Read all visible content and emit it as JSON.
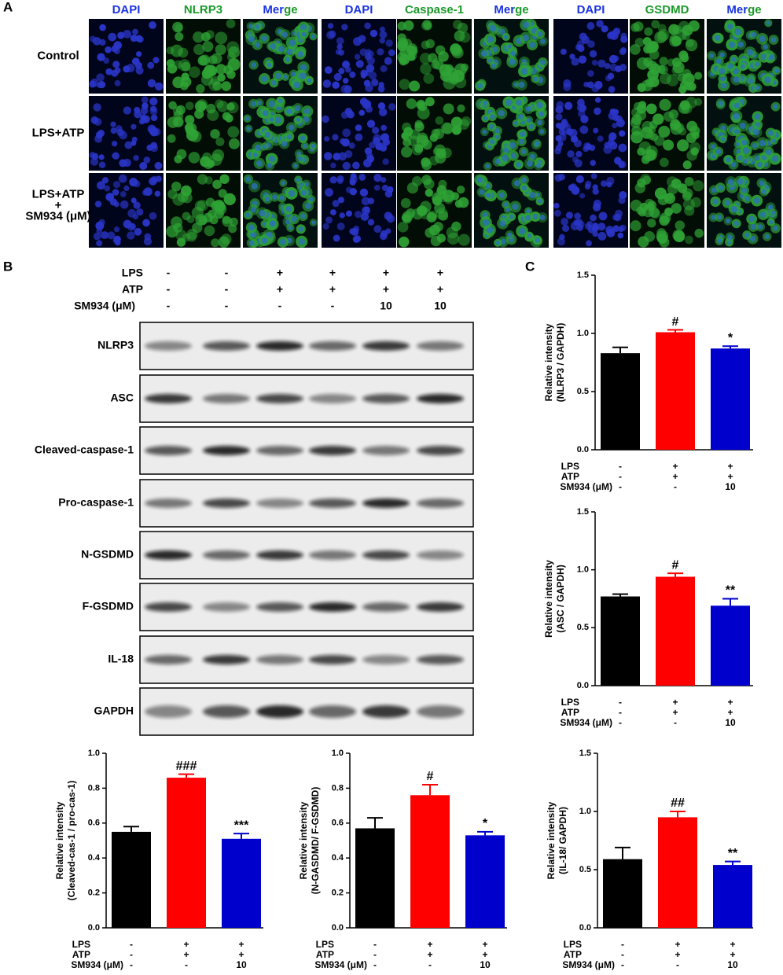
{
  "panel_a": {
    "label": "A",
    "headers": [
      "DAPI",
      "NLRP3",
      "Merge",
      "DAPI",
      "Caspase-1",
      "Merge",
      "DAPI",
      "GSDMD",
      "Merge"
    ],
    "rows": [
      [
        "Control"
      ],
      [
        "LPS+ATP"
      ],
      [
        "LPS+ATP",
        "+",
        "SM934 (μM)"
      ]
    ]
  },
  "panel_b": {
    "label": "B",
    "treatments": [
      {
        "name": "LPS",
        "values": [
          "-",
          "-",
          "+",
          "+",
          "+",
          "+"
        ]
      },
      {
        "name": "ATP",
        "values": [
          "-",
          "-",
          "+",
          "+",
          "+",
          "+"
        ]
      },
      {
        "name": "SM934 (μM)",
        "values": [
          "-",
          "-",
          "-",
          "-",
          "10",
          "10"
        ]
      }
    ],
    "blots": [
      "NLRP3",
      "ASC",
      "Cleaved-caspase-1",
      "Pro-caspase-1",
      "N-GSDMD",
      "F-GSDMD",
      "IL-18",
      "GAPDH"
    ]
  },
  "panel_c_label": "C",
  "chart_data": [
    {
      "type": "bar",
      "y_label": [
        "Relative intensity",
        "(NLRP3 / GAPDH)"
      ],
      "categories": [
        null,
        null,
        null
      ],
      "treatments": [
        {
          "name": "LPS",
          "values": [
            "-",
            "+",
            "+"
          ]
        },
        {
          "name": "ATP",
          "values": [
            "-",
            "+",
            "+"
          ]
        },
        {
          "name": "SM934 (μM)",
          "values": [
            "-",
            "-",
            "10"
          ]
        }
      ],
      "values": [
        0.83,
        1.01,
        0.87
      ],
      "errors": [
        0.05,
        0.02,
        0.02
      ],
      "colors": [
        "#000000",
        "#ff0000",
        "#0000cc"
      ],
      "annotations": [
        null,
        "#",
        "*"
      ],
      "ylim": [
        0,
        1.5
      ],
      "yticks": [
        {
          "value": 0,
          "label": "0.0"
        },
        0.5,
        {
          "value": 1,
          "label": "1.0"
        },
        1.5
      ]
    },
    {
      "type": "bar",
      "y_label": [
        "Relative intensity",
        "(ASC / GAPDH)"
      ],
      "categories": [
        null,
        null,
        null
      ],
      "treatments": [
        {
          "name": "LPS",
          "values": [
            "-",
            "+",
            "+"
          ]
        },
        {
          "name": "ATP",
          "values": [
            "-",
            "+",
            "+"
          ]
        },
        {
          "name": "SM934 (μM)",
          "values": [
            "-",
            "-",
            "10"
          ]
        }
      ],
      "values": [
        0.77,
        0.94,
        0.69
      ],
      "errors": [
        0.02,
        0.03,
        0.06
      ],
      "colors": [
        "#000000",
        "#ff0000",
        "#0000cc"
      ],
      "annotations": [
        null,
        "#",
        "**"
      ],
      "ylim": [
        0,
        1.5
      ],
      "yticks": [
        {
          "value": 0,
          "label": "0.0"
        },
        0.5,
        {
          "value": 1,
          "label": "1.0"
        },
        1.5
      ]
    },
    {
      "type": "bar",
      "y_label": [
        "Relative intensity",
        "(Cleaved-cas-1 / pro-cas-1)"
      ],
      "categories": [
        null,
        null,
        null
      ],
      "treatments": [
        {
          "name": "LPS",
          "values": [
            "-",
            "+",
            "+"
          ]
        },
        {
          "name": "ATP",
          "values": [
            "-",
            "+",
            "+"
          ]
        },
        {
          "name": "SM934 (μM)",
          "values": [
            "-",
            "-",
            "10"
          ]
        }
      ],
      "values": [
        0.55,
        0.86,
        0.51
      ],
      "errors": [
        0.03,
        0.02,
        0.03
      ],
      "colors": [
        "#000000",
        "#ff0000",
        "#0000cc"
      ],
      "annotations": [
        null,
        "###",
        "***"
      ],
      "ylim": [
        0,
        1
      ],
      "yticks": [
        {
          "value": 0,
          "label": "0.0"
        },
        0.2,
        0.4,
        0.6,
        0.8,
        {
          "value": 1,
          "label": "1.0"
        }
      ]
    },
    {
      "type": "bar",
      "y_label": [
        "Relative intensity",
        "(N-GASDMD/ F-GSDMD)"
      ],
      "categories": [
        null,
        null,
        null
      ],
      "treatments": [
        {
          "name": "LPS",
          "values": [
            "-",
            "+",
            "+"
          ]
        },
        {
          "name": "ATP",
          "values": [
            "-",
            "+",
            "+"
          ]
        },
        {
          "name": "SM934 (μM)",
          "values": [
            "-",
            "-",
            "10"
          ]
        }
      ],
      "values": [
        0.57,
        0.76,
        0.53
      ],
      "errors": [
        0.06,
        0.06,
        0.02
      ],
      "colors": [
        "#000000",
        "#ff0000",
        "#0000cc"
      ],
      "annotations": [
        null,
        "#",
        "*"
      ],
      "ylim": [
        0,
        1
      ],
      "yticks": [
        {
          "value": 0,
          "label": "0.0"
        },
        0.2,
        0.4,
        0.6,
        0.8,
        {
          "value": 1,
          "label": "1.0"
        }
      ]
    },
    {
      "type": "bar",
      "y_label": [
        "Relative intensity",
        "(IL-18/ GAPDH)"
      ],
      "categories": [
        null,
        null,
        null
      ],
      "treatments": [
        {
          "name": "LPS",
          "values": [
            "-",
            "+",
            "+"
          ]
        },
        {
          "name": "ATP",
          "values": [
            "-",
            "+",
            "+"
          ]
        },
        {
          "name": "SM934 (μM)",
          "values": [
            "-",
            "-",
            "10"
          ]
        }
      ],
      "values": [
        0.59,
        0.95,
        0.54
      ],
      "errors": [
        0.1,
        0.05,
        0.03
      ],
      "colors": [
        "#000000",
        "#ff0000",
        "#0000cc"
      ],
      "annotations": [
        null,
        "##",
        "**"
      ],
      "ylim": [
        0,
        1.5
      ],
      "yticks": [
        {
          "value": 0,
          "label": "0.0"
        },
        0.5,
        {
          "value": 1,
          "label": "1.0"
        },
        1.5
      ]
    }
  ]
}
